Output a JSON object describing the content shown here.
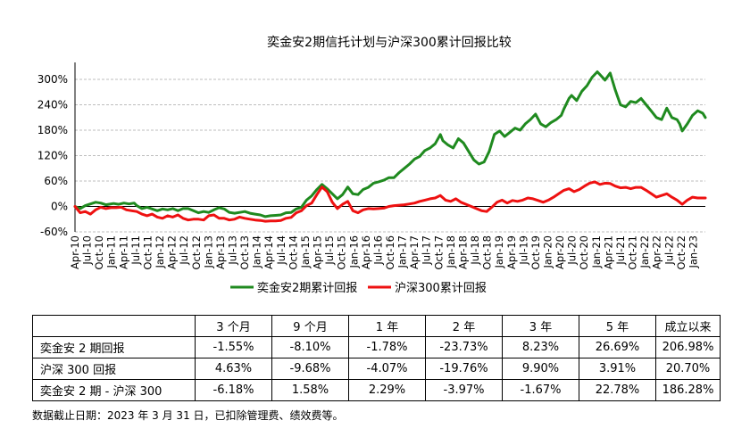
{
  "chart_data": {
    "type": "line",
    "title": "奕金安2期信托计划与沪深300累计回报比较",
    "ylim": [
      -60,
      340
    ],
    "yticks": [
      "300%",
      "240%",
      "180%",
      "120%",
      "60%",
      "0%",
      "-60%"
    ],
    "ytick_values": [
      300,
      240,
      180,
      120,
      60,
      0,
      -60
    ],
    "grid": "horizontal-dashed",
    "legend_position": "bottom",
    "xtick_labels": [
      "Apr-10",
      "Jul-10",
      "Oct-10",
      "Jan-11",
      "Apr-11",
      "Jul-11",
      "Oct-11",
      "Jan-12",
      "Apr-12",
      "Jul-12",
      "Oct-12",
      "Jan-13",
      "Apr-13",
      "Jul-13",
      "Oct-13",
      "Jan-14",
      "Apr-14",
      "Jul-14",
      "Oct-14",
      "Jan-15",
      "Apr-15",
      "Jul-15",
      "Oct-15",
      "Jan-16",
      "Apr-16",
      "Jul-16",
      "Oct-16",
      "Jan-17",
      "Apr-17",
      "Jul-17",
      "Oct-17",
      "Jan-18",
      "Apr-18",
      "Jul-18",
      "Oct-18",
      "Jan-19",
      "Apr-19",
      "Jul-19",
      "Oct-19",
      "Jan-20",
      "Apr-20",
      "Jul-20",
      "Oct-20",
      "Jan-21",
      "Apr-21",
      "Jul-21",
      "Oct-21",
      "Jan-22",
      "Apr-22",
      "Jul-22",
      "Oct-22",
      "Jan-23"
    ],
    "x_months": 157,
    "series": [
      {
        "name": "奕金安2期累计回报",
        "color": "#1f8a1f",
        "points": [
          [
            0,
            0
          ],
          [
            2,
            -5
          ],
          [
            4,
            2
          ],
          [
            6,
            6
          ],
          [
            8,
            10
          ],
          [
            10,
            8
          ],
          [
            12,
            4
          ],
          [
            13,
            5
          ],
          [
            15,
            7
          ],
          [
            17,
            5
          ],
          [
            19,
            8
          ],
          [
            21,
            6
          ],
          [
            23,
            8
          ],
          [
            24,
            2
          ],
          [
            26,
            -5
          ],
          [
            28,
            -2
          ],
          [
            30,
            -6
          ],
          [
            32,
            -10
          ],
          [
            34,
            -6
          ],
          [
            36,
            -8
          ],
          [
            38,
            -5
          ],
          [
            40,
            -10
          ],
          [
            42,
            -5
          ],
          [
            44,
            -5
          ],
          [
            46,
            -10
          ],
          [
            48,
            -15
          ],
          [
            50,
            -12
          ],
          [
            52,
            -14
          ],
          [
            54,
            -8
          ],
          [
            56,
            -3
          ],
          [
            58,
            -6
          ],
          [
            60,
            -14
          ],
          [
            62,
            -16
          ],
          [
            64,
            -14
          ],
          [
            66,
            -12
          ],
          [
            68,
            -16
          ],
          [
            70,
            -18
          ],
          [
            72,
            -20
          ],
          [
            74,
            -24
          ],
          [
            76,
            -22
          ],
          [
            78,
            -21
          ],
          [
            80,
            -20
          ],
          [
            82,
            -15
          ],
          [
            84,
            -14
          ],
          [
            86,
            -6
          ],
          [
            88,
            -2
          ],
          [
            90,
            15
          ],
          [
            92,
            25
          ],
          [
            94,
            40
          ],
          [
            96,
            52
          ],
          [
            98,
            42
          ],
          [
            100,
            30
          ],
          [
            102,
            18
          ],
          [
            104,
            28
          ],
          [
            106,
            46
          ],
          [
            108,
            30
          ],
          [
            110,
            28
          ],
          [
            112,
            40
          ],
          [
            114,
            45
          ],
          [
            116,
            55
          ],
          [
            118,
            58
          ],
          [
            120,
            62
          ],
          [
            122,
            68
          ],
          [
            124,
            68
          ],
          [
            126,
            80
          ],
          [
            128,
            90
          ],
          [
            130,
            100
          ],
          [
            132,
            112
          ],
          [
            134,
            118
          ],
          [
            136,
            132
          ],
          [
            138,
            138
          ],
          [
            140,
            148
          ],
          [
            142,
            170
          ],
          [
            143,
            155
          ],
          [
            145,
            145
          ],
          [
            147,
            138
          ],
          [
            149,
            160
          ],
          [
            151,
            150
          ],
          [
            153,
            130
          ],
          [
            155,
            110
          ],
          [
            157,
            100
          ],
          [
            159,
            105
          ],
          [
            161,
            130
          ],
          [
            163,
            170
          ],
          [
            165,
            178
          ],
          [
            167,
            165
          ],
          [
            169,
            175
          ],
          [
            171,
            185
          ],
          [
            173,
            180
          ],
          [
            175,
            195
          ],
          [
            177,
            205
          ],
          [
            179,
            218
          ],
          [
            181,
            195
          ],
          [
            183,
            188
          ],
          [
            185,
            198
          ],
          [
            187,
            205
          ],
          [
            189,
            215
          ],
          [
            190,
            230
          ],
          [
            192,
            255
          ],
          [
            193,
            262
          ],
          [
            195,
            250
          ],
          [
            197,
            272
          ],
          [
            199,
            285
          ],
          [
            201,
            305
          ],
          [
            203,
            318
          ],
          [
            205,
            305
          ],
          [
            206,
            298
          ],
          [
            208,
            315
          ],
          [
            210,
            275
          ],
          [
            212,
            240
          ],
          [
            214,
            235
          ],
          [
            216,
            248
          ],
          [
            218,
            245
          ],
          [
            220,
            255
          ],
          [
            222,
            240
          ],
          [
            224,
            225
          ],
          [
            226,
            210
          ],
          [
            228,
            205
          ],
          [
            230,
            232
          ],
          [
            232,
            210
          ],
          [
            234,
            205
          ],
          [
            235,
            195
          ],
          [
            236,
            178
          ],
          [
            238,
            195
          ],
          [
            240,
            215
          ],
          [
            242,
            226
          ],
          [
            244,
            220
          ],
          [
            245,
            210
          ]
        ]
      },
      {
        "name": "沪深300累计回报",
        "color": "#ee1111",
        "points": [
          [
            0,
            0
          ],
          [
            2,
            -15
          ],
          [
            4,
            -12
          ],
          [
            6,
            -18
          ],
          [
            8,
            -8
          ],
          [
            10,
            -2
          ],
          [
            12,
            -5
          ],
          [
            14,
            -3
          ],
          [
            16,
            -3
          ],
          [
            18,
            -2
          ],
          [
            20,
            -8
          ],
          [
            22,
            -10
          ],
          [
            24,
            -12
          ],
          [
            26,
            -18
          ],
          [
            28,
            -22
          ],
          [
            30,
            -18
          ],
          [
            32,
            -25
          ],
          [
            34,
            -28
          ],
          [
            36,
            -22
          ],
          [
            38,
            -25
          ],
          [
            40,
            -20
          ],
          [
            42,
            -28
          ],
          [
            44,
            -32
          ],
          [
            46,
            -30
          ],
          [
            48,
            -30
          ],
          [
            50,
            -32
          ],
          [
            52,
            -22
          ],
          [
            54,
            -20
          ],
          [
            56,
            -28
          ],
          [
            58,
            -28
          ],
          [
            60,
            -32
          ],
          [
            62,
            -30
          ],
          [
            64,
            -25
          ],
          [
            66,
            -28
          ],
          [
            68,
            -30
          ],
          [
            70,
            -32
          ],
          [
            72,
            -33
          ],
          [
            74,
            -35
          ],
          [
            76,
            -34
          ],
          [
            78,
            -34
          ],
          [
            80,
            -33
          ],
          [
            82,
            -28
          ],
          [
            84,
            -26
          ],
          [
            86,
            -15
          ],
          [
            88,
            -10
          ],
          [
            90,
            2
          ],
          [
            92,
            8
          ],
          [
            94,
            28
          ],
          [
            96,
            46
          ],
          [
            98,
            35
          ],
          [
            100,
            10
          ],
          [
            102,
            -5
          ],
          [
            104,
            5
          ],
          [
            106,
            12
          ],
          [
            108,
            -10
          ],
          [
            110,
            -15
          ],
          [
            112,
            -8
          ],
          [
            114,
            -5
          ],
          [
            116,
            -6
          ],
          [
            118,
            -5
          ],
          [
            120,
            -4
          ],
          [
            122,
            0
          ],
          [
            124,
            2
          ],
          [
            126,
            3
          ],
          [
            128,
            4
          ],
          [
            130,
            6
          ],
          [
            132,
            8
          ],
          [
            134,
            12
          ],
          [
            136,
            15
          ],
          [
            138,
            18
          ],
          [
            140,
            20
          ],
          [
            142,
            26
          ],
          [
            144,
            15
          ],
          [
            146,
            12
          ],
          [
            148,
            18
          ],
          [
            150,
            10
          ],
          [
            152,
            5
          ],
          [
            154,
            0
          ],
          [
            156,
            -5
          ],
          [
            158,
            -10
          ],
          [
            160,
            -12
          ],
          [
            162,
            -2
          ],
          [
            164,
            10
          ],
          [
            166,
            15
          ],
          [
            168,
            8
          ],
          [
            170,
            14
          ],
          [
            172,
            12
          ],
          [
            174,
            15
          ],
          [
            176,
            20
          ],
          [
            178,
            18
          ],
          [
            180,
            14
          ],
          [
            182,
            10
          ],
          [
            184,
            15
          ],
          [
            186,
            22
          ],
          [
            188,
            30
          ],
          [
            190,
            38
          ],
          [
            192,
            42
          ],
          [
            194,
            35
          ],
          [
            196,
            40
          ],
          [
            198,
            48
          ],
          [
            200,
            55
          ],
          [
            202,
            58
          ],
          [
            204,
            52
          ],
          [
            206,
            55
          ],
          [
            208,
            54
          ],
          [
            210,
            48
          ],
          [
            212,
            44
          ],
          [
            214,
            45
          ],
          [
            216,
            42
          ],
          [
            218,
            45
          ],
          [
            220,
            45
          ],
          [
            222,
            38
          ],
          [
            224,
            30
          ],
          [
            226,
            22
          ],
          [
            228,
            26
          ],
          [
            230,
            30
          ],
          [
            232,
            22
          ],
          [
            234,
            15
          ],
          [
            236,
            5
          ],
          [
            238,
            15
          ],
          [
            240,
            22
          ],
          [
            242,
            20
          ],
          [
            245,
            20
          ]
        ]
      }
    ]
  },
  "table": {
    "headers": [
      "",
      "3 个月",
      "9 个月",
      "1 年",
      "2 年",
      "3 年",
      "5 年",
      "成立以来"
    ],
    "rows": [
      {
        "label": "奕金安 2 期回报",
        "values": [
          "-1.55%",
          "-8.10%",
          "-1.78%",
          "-23.73%",
          "8.23%",
          "26.69%",
          "206.98%"
        ]
      },
      {
        "label": "沪深 300 回报",
        "values": [
          "4.63%",
          "-9.68%",
          "-4.07%",
          "-19.76%",
          "9.90%",
          "3.91%",
          "20.70%"
        ]
      },
      {
        "label": "奕金安 2 期 - 沪深 300",
        "values": [
          "-6.18%",
          "1.58%",
          "2.29%",
          "-3.97%",
          "-1.67%",
          "22.78%",
          "186.28%"
        ]
      }
    ]
  },
  "note": "数据截止日期：2023 年 3 月 31 日，已扣除管理费、绩效费等。"
}
